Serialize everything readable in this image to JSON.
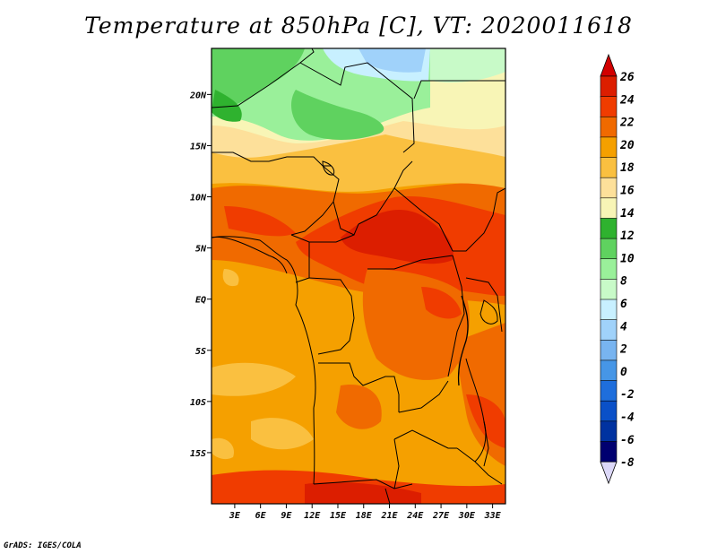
{
  "title": "Temperature at 850hPa [C], VT: 2020011618",
  "credit": "GrADS: IGES/COLA",
  "lat_ticks": [
    {
      "label": "20N",
      "lat": 20
    },
    {
      "label": "15N",
      "lat": 15
    },
    {
      "label": "10N",
      "lat": 10
    },
    {
      "label": "5N",
      "lat": 5
    },
    {
      "label": "EQ",
      "lat": 0
    },
    {
      "label": "5S",
      "lat": -5
    },
    {
      "label": "10S",
      "lat": -10
    },
    {
      "label": "15S",
      "lat": -15
    }
  ],
  "lon_ticks": [
    {
      "label": "3E",
      "lon": 3
    },
    {
      "label": "6E",
      "lon": 6
    },
    {
      "label": "9E",
      "lon": 9
    },
    {
      "label": "12E",
      "lon": 12
    },
    {
      "label": "15E",
      "lon": 15
    },
    {
      "label": "18E",
      "lon": 18
    },
    {
      "label": "21E",
      "lon": 21
    },
    {
      "label": "24E",
      "lon": 24
    },
    {
      "label": "27E",
      "lon": 27
    },
    {
      "label": "30E",
      "lon": 30
    },
    {
      "label": "33E",
      "lon": 33
    }
  ],
  "extent": {
    "lon": [
      0.3,
      34.5
    ],
    "lat": [
      -20,
      24.5
    ]
  },
  "colorbar": {
    "levels": [
      "26",
      "24",
      "22",
      "20",
      "18",
      "16",
      "14",
      "12",
      "10",
      "8",
      "6",
      "4",
      "2",
      "0",
      "-2",
      "-4",
      "-6",
      "-8"
    ],
    "colors": [
      "#a50000",
      "#dc1e00",
      "#f03c00",
      "#f06a00",
      "#f5a000",
      "#fac040",
      "#fde09a",
      "#f8f5b6",
      "#2fb22f",
      "#5fd25f",
      "#9af09a",
      "#c8fac8",
      "#c8f0ff",
      "#a0d2fa",
      "#78b4f0",
      "#4696e6",
      "#1e6edc",
      "#0a50c8",
      "#0032a0",
      "#000070",
      "#d8dcff"
    ],
    "tip_top": "#d20000",
    "tip_bottom": "#dcd8f8"
  }
}
